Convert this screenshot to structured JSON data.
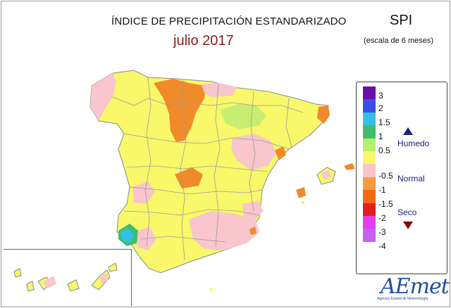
{
  "header": {
    "title": "ÍNDICE DE PRECIPITACIÓN ESTANDARIZADO",
    "period": "julio 2017",
    "index_name": "SPI",
    "scale_note": "(escala de 6 meses)"
  },
  "legend": {
    "ticks": [
      "3",
      "2",
      "1.5",
      "1",
      "0.5",
      "-0.5",
      "-1",
      "-1.5",
      "-2",
      "-3",
      "-4"
    ],
    "colors": [
      "#6a0dad",
      "#3d4fe0",
      "#33bfe8",
      "#3fbf6a",
      "#b8ee68",
      "#f8f86a",
      "#f8c6cc",
      "#f59b3c",
      "#f06a16",
      "#e0201e",
      "#e040f0",
      "#c860f0"
    ],
    "labels": {
      "wet": "Humedo",
      "normal": "Normal",
      "dry": "Seco"
    }
  },
  "map_colors": {
    "land": "#f8f86a",
    "border": "#9a9a9a",
    "pink": "#f8c6cc",
    "orange": "#f08a2a",
    "light_green": "#c8ee70",
    "green": "#3fbf6a",
    "cyan": "#33bfe8"
  },
  "logo": {
    "name": "AEmet",
    "subtitle": "Agencia Estatal de Meteorología"
  }
}
